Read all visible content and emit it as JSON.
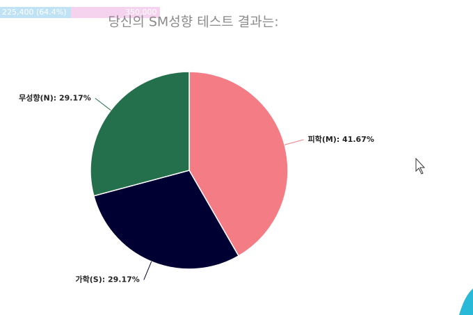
{
  "chart_data": {
    "type": "pie",
    "title": "당신의 SM성향 테스트 결과는:",
    "values": [
      41.67,
      29.17,
      29.17
    ],
    "value_labels": [
      "피학(M): 41.67%",
      "가학(S): 29.17%",
      "무성향(N): 29.17%"
    ],
    "colors": [
      "#f47c84",
      "#000033",
      "#24704c"
    ]
  },
  "overlay": {
    "progress_left": "225,400 (64.4%)",
    "progress_right": "350,000"
  }
}
